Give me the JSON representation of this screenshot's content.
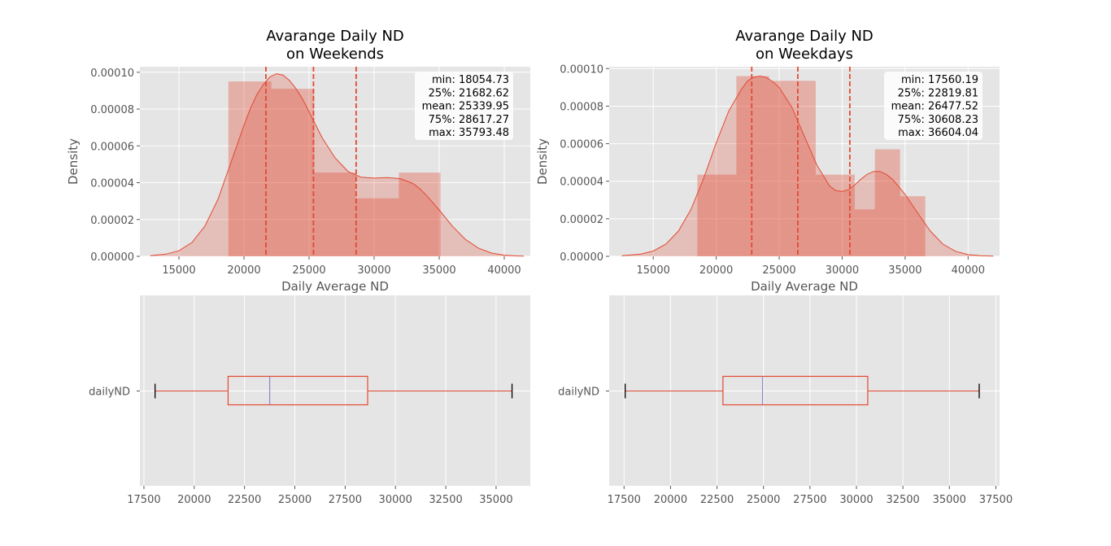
{
  "figure": {
    "background": "#ffffff",
    "panel_background": "#e5e5e5",
    "grid_color": "#ffffff"
  },
  "colors": {
    "hist_fill": "#e24a33",
    "kde_line": "#e24a33",
    "stat_line": "#e24a33",
    "box": "#e24a33",
    "median": "#8a85c8",
    "whisker_cap": "#000000"
  },
  "chart_data": [
    {
      "type": "bar",
      "subtype": "histogram+kde",
      "title": "Avarange Daily ND\non Weekends",
      "xlabel": "Daily Average ND",
      "ylabel": "Density",
      "xlim": [
        12000,
        42000
      ],
      "ylim": [
        0,
        0.000103
      ],
      "xticks": [
        15000,
        20000,
        25000,
        30000,
        35000,
        40000
      ],
      "xtick_labels": [
        "15000",
        "20000",
        "25000",
        "30000",
        "35000",
        "40000"
      ],
      "yticks": [
        0,
        2e-05,
        4e-05,
        6e-05,
        8e-05,
        0.0001
      ],
      "ytick_labels": [
        "0.00000",
        "0.00002",
        "0.00004",
        "0.00006",
        "0.00008",
        "0.00010"
      ],
      "grid": true,
      "bins": [
        {
          "x0": 18800,
          "x1": 22100,
          "density": 9.5e-05
        },
        {
          "x0": 22100,
          "x1": 25400,
          "density": 9.1e-05
        },
        {
          "x0": 25400,
          "x1": 28600,
          "density": 4.55e-05
        },
        {
          "x0": 28600,
          "x1": 31900,
          "density": 3.15e-05
        },
        {
          "x0": 31900,
          "x1": 35100,
          "density": 4.55e-05
        }
      ],
      "kde": {
        "x": [
          12800,
          14000,
          15000,
          16000,
          17000,
          18000,
          19000,
          20000,
          20500,
          21000,
          21500,
          22000,
          22500,
          23000,
          23500,
          24000,
          24500,
          25000,
          26000,
          27000,
          28000,
          29000,
          30000,
          31000,
          32000,
          33000,
          33500,
          34000,
          35000,
          36000,
          37000,
          38000,
          39000,
          40000,
          41000,
          41500
        ],
        "y": [
          3e-07,
          1.2e-06,
          3e-06,
          7.5e-06,
          1.65e-05,
          3.1e-05,
          5.1e-05,
          7.12e-05,
          8.05e-05,
          8.8e-05,
          9.35e-05,
          9.75e-05,
          9.92e-05,
          9.85e-05,
          9.55e-05,
          9.1e-05,
          8.55e-05,
          7.85e-05,
          6.45e-05,
          5.35e-05,
          4.6e-05,
          4.3e-05,
          4.25e-05,
          4.28e-05,
          4.22e-05,
          3.95e-05,
          3.68e-05,
          3.33e-05,
          2.52e-05,
          1.65e-05,
          9.3e-06,
          4.5e-06,
          1.8e-06,
          6e-07,
          2e-07,
          1e-07
        ]
      },
      "stat_lines": [
        21682.62,
        25339.95,
        28617.27
      ],
      "stats_box": [
        "min: 18054.73",
        "25%: 21682.62",
        "mean: 25339.95",
        "75%: 28617.27",
        "max: 35793.48"
      ]
    },
    {
      "type": "bar",
      "subtype": "histogram+kde",
      "title": "Avarange Daily ND\non Weekdays",
      "xlabel": "Daily Average ND",
      "ylabel": "Density",
      "xlim": [
        11500,
        42500
      ],
      "ylim": [
        0,
        0.000101
      ],
      "xticks": [
        15000,
        20000,
        25000,
        30000,
        35000,
        40000
      ],
      "xtick_labels": [
        "15000",
        "20000",
        "25000",
        "30000",
        "35000",
        "40000"
      ],
      "yticks": [
        0,
        2e-05,
        4e-05,
        6e-05,
        8e-05,
        0.0001
      ],
      "ytick_labels": [
        "0.00000",
        "0.00002",
        "0.00004",
        "0.00006",
        "0.00008",
        "0.00010"
      ],
      "grid": true,
      "bins": [
        {
          "x0": 18500,
          "x1": 21600,
          "density": 4.35e-05
        },
        {
          "x0": 21600,
          "x1": 24800,
          "density": 9.6e-05
        },
        {
          "x0": 24800,
          "x1": 27900,
          "density": 9.35e-05
        },
        {
          "x0": 27900,
          "x1": 31000,
          "density": 4.35e-05
        },
        {
          "x0": 31000,
          "x1": 34200,
          "density": 2.5e-05
        },
        {
          "x0": 34200,
          "x1": 36600,
          "density": 5.7e-05
        },
        {
          "x0": 36600,
          "x1": 36601,
          "density": 0
        }
      ],
      "bins_visible": [
        {
          "x0": 18500,
          "x1": 21600,
          "density": 4.35e-05
        },
        {
          "x0": 21600,
          "x1": 24200,
          "density": 9.6e-05
        },
        {
          "x0": 24200,
          "x1": 27900,
          "density": 9.35e-05
        },
        {
          "x0": 27900,
          "x1": 31000,
          "density": 4.35e-05
        },
        {
          "x0": 31000,
          "x1": 32600,
          "density": 2.5e-05
        },
        {
          "x0": 32600,
          "x1": 34600,
          "density": 5.7e-05
        },
        {
          "x0": 34600,
          "x1": 36600,
          "density": 3.2e-05
        }
      ],
      "kde": {
        "x": [
          12500,
          14000,
          15000,
          16000,
          17000,
          18000,
          19000,
          20000,
          21000,
          22000,
          22500,
          23000,
          23500,
          24000,
          24500,
          25000,
          26000,
          27000,
          28000,
          29000,
          29500,
          30000,
          30500,
          31000,
          31500,
          32000,
          32500,
          33000,
          33500,
          34000,
          35000,
          36000,
          37000,
          38000,
          39000,
          40000,
          41000,
          42000
        ],
        "y": [
          3e-07,
          1.2e-06,
          2.8e-06,
          6.5e-06,
          1.35e-05,
          2.5e-05,
          4.15e-05,
          6.05e-05,
          7.75e-05,
          8.9e-05,
          9.35e-05,
          9.55e-05,
          9.6e-05,
          9.52e-05,
          9.3e-05,
          9e-05,
          7.95e-05,
          6.4e-05,
          4.85e-05,
          3.75e-05,
          3.5e-05,
          3.45e-05,
          3.55e-05,
          3.8e-05,
          4.12e-05,
          4.38e-05,
          4.52e-05,
          4.52e-05,
          4.37e-05,
          4.1e-05,
          3.3e-05,
          2.3e-05,
          1.35e-05,
          6.5e-06,
          2.7e-06,
          9e-07,
          3e-07,
          1e-07
        ]
      },
      "stat_lines": [
        22819.81,
        26477.52,
        30608.23
      ],
      "stats_box": [
        "min: 17560.19",
        "25%: 22819.81",
        "mean: 26477.52",
        "75%: 30608.23",
        "max: 36604.04"
      ]
    },
    {
      "type": "box",
      "title": "",
      "category_label": "dailyND",
      "xlim": [
        17300,
        36700
      ],
      "xticks": [
        17500,
        20000,
        22500,
        25000,
        27500,
        30000,
        32500,
        35000
      ],
      "xtick_labels": [
        "17500",
        "20000",
        "22500",
        "25000",
        "27500",
        "30000",
        "32500",
        "35000"
      ],
      "grid": true,
      "min": 18054.73,
      "q1": 21682.62,
      "median": 23750,
      "q3": 28617.27,
      "max": 35793.48
    },
    {
      "type": "box",
      "title": "",
      "category_label": "dailyND",
      "xlim": [
        16700,
        37700
      ],
      "xticks": [
        17500,
        20000,
        22500,
        25000,
        27500,
        30000,
        32500,
        35000,
        37500
      ],
      "xtick_labels": [
        "17500",
        "20000",
        "22500",
        "25000",
        "27500",
        "30000",
        "32500",
        "35000",
        "37500"
      ],
      "grid": true,
      "min": 17560.19,
      "q1": 22819.81,
      "median": 24950,
      "q3": 30608.23,
      "max": 36604.04
    }
  ]
}
